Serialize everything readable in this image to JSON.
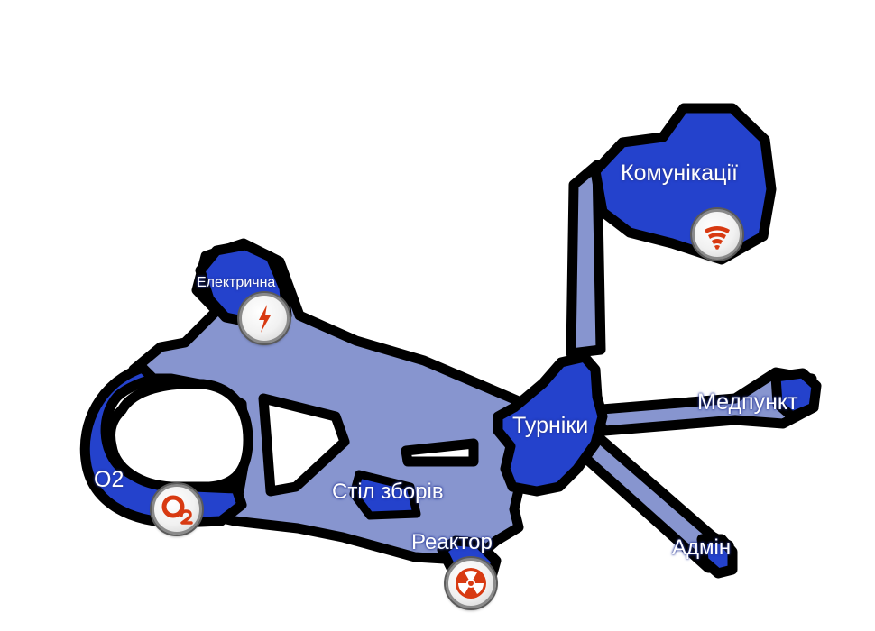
{
  "map": {
    "colors": {
      "outline": "#000000",
      "corridor": "#8795cf",
      "room": "#2442cc",
      "icon_accent": "#d83a12",
      "label": "#ffffff"
    },
    "rooms": {
      "communications": {
        "label": "Комунікації",
        "icon": "wifi-icon"
      },
      "electrical": {
        "label": "Електрична",
        "icon": "lightning-icon"
      },
      "turnstiles": {
        "label": "Турніки"
      },
      "medbay": {
        "label": "Медпункт"
      },
      "meeting_table": {
        "label": "Стіл зборів"
      },
      "reactor": {
        "label": "Реактор",
        "icon": "radiation-icon"
      },
      "admin": {
        "label": "Адмін"
      },
      "o2": {
        "label": "O2",
        "icon": "o2-icon"
      }
    }
  }
}
